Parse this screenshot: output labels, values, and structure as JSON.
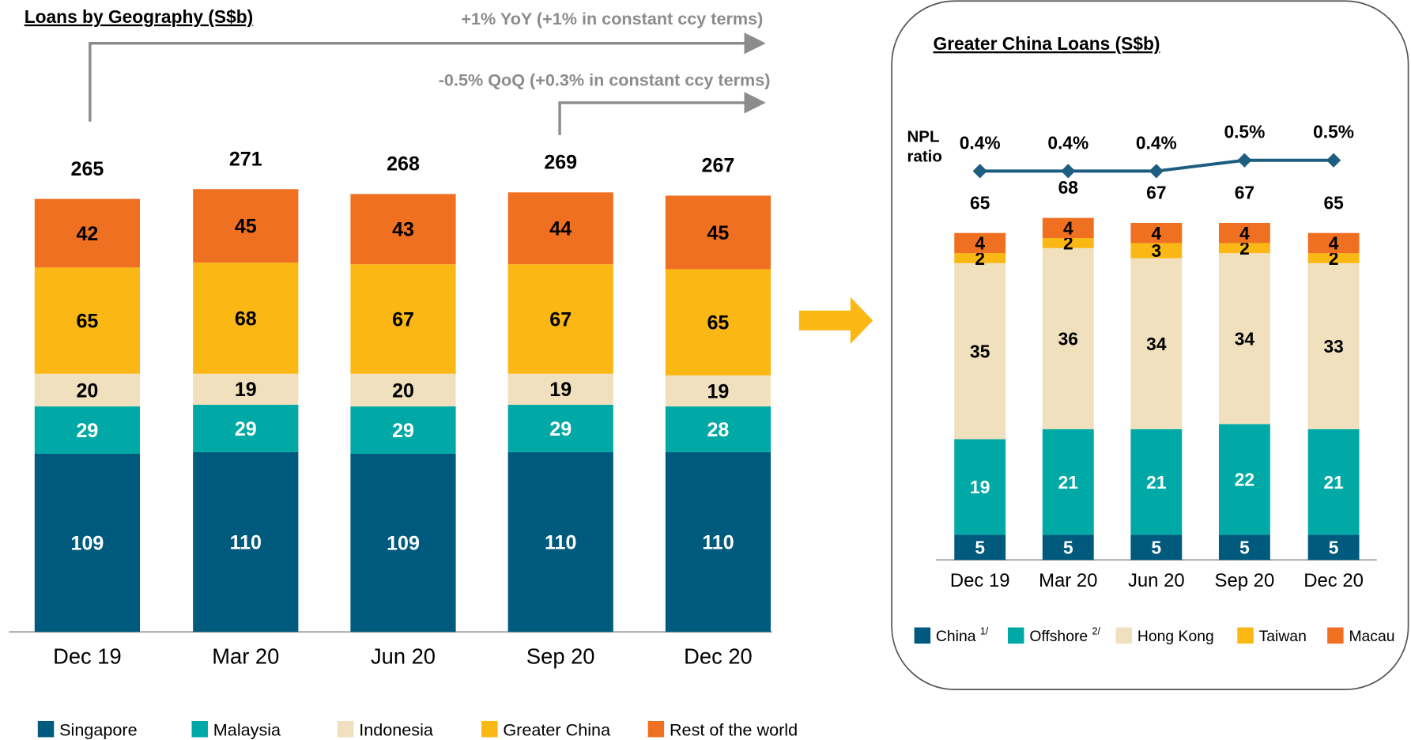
{
  "chart_data": [
    {
      "type": "bar",
      "stacked": true,
      "title": "Loans by Geography (S$b)",
      "annotations": [
        "+1% YoY (+1% in constant ccy terms)",
        "-0.5% QoQ (+0.3% in constant ccy terms)"
      ],
      "categories": [
        "Dec 19",
        "Mar 20",
        "Jun 20",
        "Sep 20",
        "Dec 20"
      ],
      "totals": [
        265,
        271,
        268,
        269,
        267
      ],
      "series": [
        {
          "name": "Singapore",
          "color": "#005a7e",
          "values": [
            109,
            110,
            109,
            110,
            110
          ]
        },
        {
          "name": "Malaysia",
          "color": "#00a9a5",
          "values": [
            29,
            29,
            29,
            29,
            28
          ]
        },
        {
          "name": "Indonesia",
          "color": "#f0e0bd",
          "values": [
            20,
            19,
            20,
            19,
            19
          ]
        },
        {
          "name": "Greater China",
          "color": "#fbb714",
          "values": [
            65,
            68,
            67,
            67,
            65
          ]
        },
        {
          "name": "Rest of the world",
          "color": "#f07021",
          "values": [
            42,
            45,
            43,
            44,
            45
          ]
        }
      ]
    },
    {
      "type": "bar",
      "stacked": true,
      "title": "Greater China Loans (S$b)",
      "categories": [
        "Dec 19",
        "Mar 20",
        "Jun 20",
        "Sep 20",
        "Dec 20"
      ],
      "totals": [
        65,
        68,
        67,
        67,
        65
      ],
      "series": [
        {
          "name": "China",
          "footnote": "1/",
          "color": "#005a7e",
          "values": [
            5,
            5,
            5,
            5,
            5
          ]
        },
        {
          "name": "Offshore",
          "footnote": "2/",
          "color": "#00a9a5",
          "values": [
            19,
            21,
            21,
            22,
            21
          ]
        },
        {
          "name": "Hong Kong",
          "color": "#f0e0bd",
          "values": [
            35,
            36,
            34,
            34,
            33
          ]
        },
        {
          "name": "Taiwan",
          "color": "#fbb714",
          "values": [
            2,
            2,
            3,
            2,
            2
          ]
        },
        {
          "name": "Macau",
          "color": "#f07021",
          "values": [
            4,
            4,
            4,
            4,
            4
          ]
        }
      ],
      "line": {
        "label": [
          "NPL",
          "ratio"
        ],
        "color": "#1d5d80",
        "values": [
          0.4,
          0.4,
          0.4,
          0.5,
          0.5
        ],
        "value_labels": [
          "0.4%",
          "0.4%",
          "0.4%",
          "0.5%",
          "0.5%"
        ]
      }
    }
  ]
}
